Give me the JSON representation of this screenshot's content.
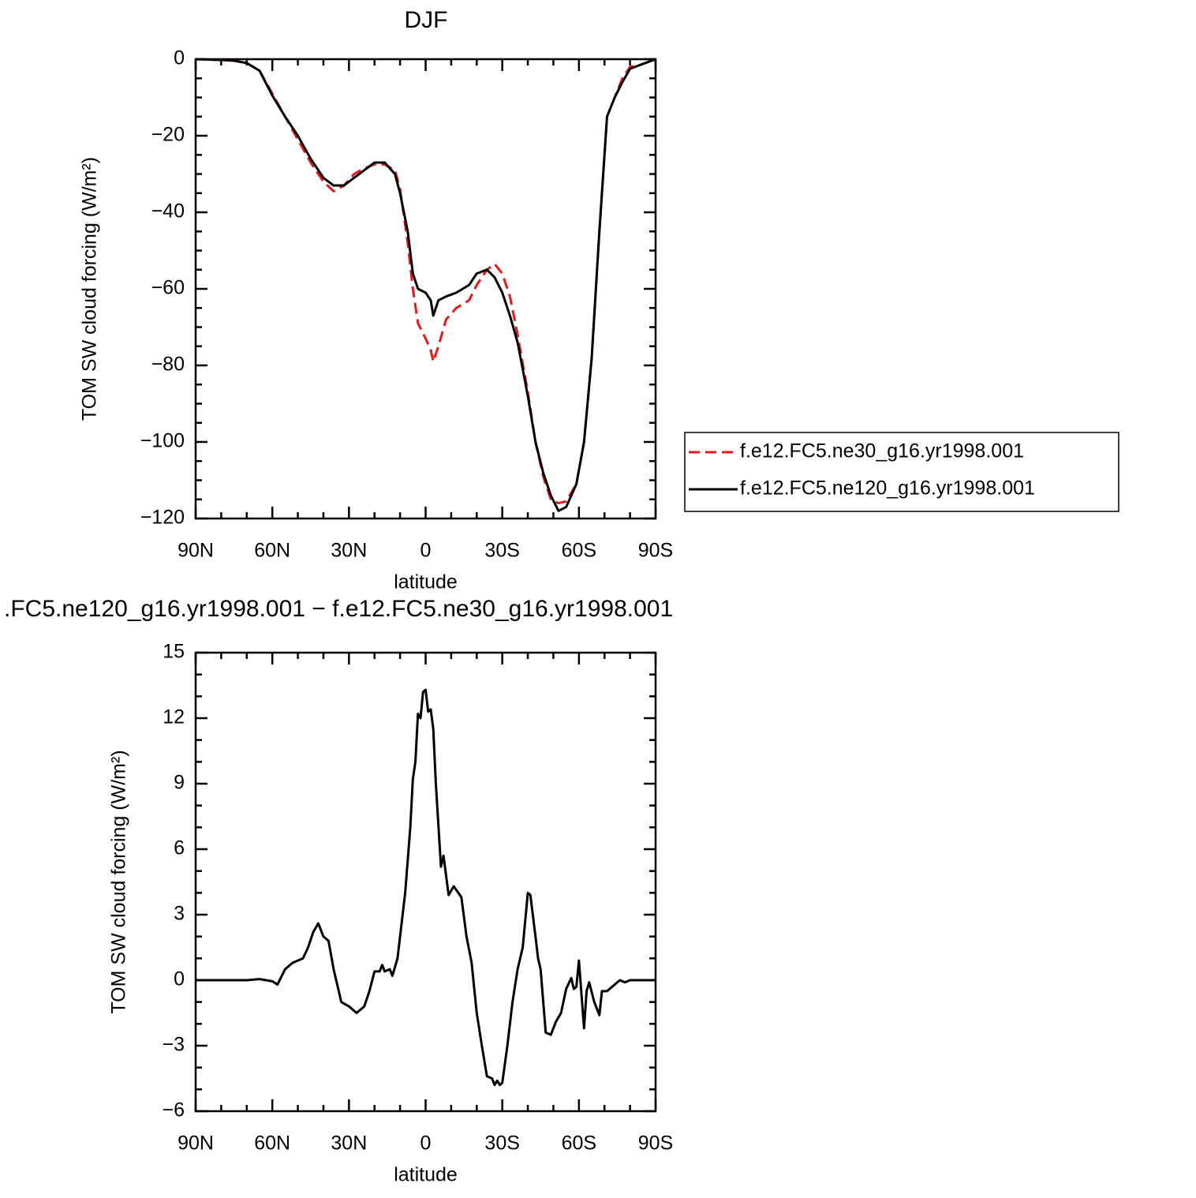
{
  "chart_data": [
    {
      "type": "line",
      "title": "DJF",
      "xlabel": "latitude",
      "ylabel": "TOM SW cloud forcing (W/m²)",
      "x": [
        90,
        85,
        80,
        75,
        70,
        65,
        60,
        55,
        50,
        45,
        40,
        36,
        32,
        28,
        24,
        20,
        16,
        12,
        10,
        7,
        5,
        3,
        0,
        -2,
        -3,
        -5,
        -8,
        -12,
        -17,
        -20,
        -24,
        -27,
        -30,
        -33,
        -36,
        -40,
        -43,
        -46,
        -49,
        -52,
        -55,
        -59,
        -62,
        -65,
        -68,
        -71,
        -74,
        -77,
        -80,
        -84,
        -90
      ],
      "series": [
        {
          "name": "f.e12.FC5.ne30_g16.yr1998.001",
          "color": "#e41a1c",
          "line_style": "dashed",
          "values": [
            0,
            -0.1,
            -0.2,
            -0.4,
            -1,
            -3,
            -9,
            -15,
            -21,
            -27,
            -32,
            -34.5,
            -33,
            -30,
            -28.5,
            -27.5,
            -27.5,
            -29,
            -34,
            -48,
            -60,
            -69,
            -73,
            -76,
            -79,
            -75,
            -68,
            -65,
            -63,
            -59,
            -55,
            -53.5,
            -56,
            -62,
            -72,
            -87,
            -100,
            -109,
            -115,
            -116,
            -115.5,
            -111,
            -100,
            -78,
            -45,
            -15,
            -10,
            -5,
            -2,
            -1.5,
            0
          ]
        },
        {
          "name": "f.e12.FC5.ne120_g16.yr1998.001",
          "color": "#000000",
          "line_style": "solid",
          "values": [
            0,
            -0.1,
            -0.2,
            -0.4,
            -1,
            -3,
            -9.5,
            -15,
            -20,
            -26,
            -31,
            -33,
            -33,
            -31,
            -29,
            -27,
            -27,
            -30,
            -35,
            -45,
            -56,
            -60,
            -61,
            -63,
            -67,
            -63,
            -62,
            -61,
            -59,
            -56,
            -55,
            -57,
            -61,
            -67,
            -74,
            -88,
            -100,
            -108,
            -114,
            -118,
            -117,
            -111,
            -100,
            -78,
            -45,
            -15,
            -10,
            -6,
            -2.5,
            -1.5,
            0
          ]
        }
      ],
      "xlim": [
        90,
        -90
      ],
      "xticks": [
        {
          "value": 90,
          "label": "90N"
        },
        {
          "value": 60,
          "label": "60N"
        },
        {
          "value": 30,
          "label": "30N"
        },
        0,
        {
          "value": -30,
          "label": "30S"
        },
        {
          "value": -60,
          "label": "60S"
        },
        {
          "value": -90,
          "label": "90S"
        }
      ],
      "ylim": [
        -120,
        0
      ],
      "yticks": [
        0,
        {
          "value": -20,
          "label": "−20"
        },
        {
          "value": -40,
          "label": "−40"
        },
        {
          "value": -60,
          "label": "−60"
        },
        {
          "value": -80,
          "label": "−80"
        },
        {
          "value": -100,
          "label": "−100"
        },
        {
          "value": -120,
          "label": "−120"
        }
      ],
      "legend": "right"
    },
    {
      "type": "line",
      "title": ".FC5.ne120_g16.yr1998.001 − f.e12.FC5.ne30_g16.yr1998.001",
      "xlabel": "latitude",
      "ylabel": "TOM SW cloud forcing (W/m²)",
      "x": [
        90,
        70,
        65,
        60,
        58,
        55,
        52,
        48,
        46,
        44,
        42,
        40,
        38,
        36,
        33,
        30,
        27,
        24,
        22,
        20,
        18,
        17,
        16,
        14,
        13,
        11,
        10,
        8,
        6,
        5,
        4,
        3,
        2,
        1,
        0,
        -1,
        -2,
        -3,
        -4,
        -6,
        -7,
        -9,
        -11,
        -14,
        -16,
        -18,
        -20,
        -22,
        -24,
        -26,
        -27,
        -28,
        -29,
        -30,
        -32,
        -34,
        -36,
        -38,
        -40,
        -41,
        -43,
        -44,
        -45,
        -47,
        -49,
        -51,
        -53,
        -55,
        -57,
        -58,
        -59,
        -60,
        -62,
        -63,
        -64,
        -66,
        -68,
        -69,
        -71,
        -73,
        -75,
        -76,
        -78,
        -80,
        -90
      ],
      "color": "#000000",
      "values": [
        0,
        0,
        0.05,
        -0.05,
        -0.2,
        0.5,
        0.8,
        1.0,
        1.5,
        2.2,
        2.6,
        2.0,
        1.8,
        0.5,
        -1.0,
        -1.2,
        -1.5,
        -1.2,
        -0.5,
        0.4,
        0.4,
        0.7,
        0.4,
        0.5,
        0.2,
        1.0,
        2.0,
        4.0,
        7.0,
        9.2,
        10.0,
        12.2,
        12.0,
        13.2,
        13.3,
        12.3,
        12.4,
        11.5,
        9.0,
        5.2,
        5.7,
        3.9,
        4.3,
        3.8,
        2.0,
        0.8,
        -1.5,
        -3.0,
        -4.4,
        -4.5,
        -4.8,
        -4.6,
        -4.8,
        -4.7,
        -3.0,
        -1.0,
        0.5,
        1.5,
        4.0,
        3.9,
        2.0,
        1.0,
        0.5,
        -2.4,
        -2.5,
        -1.9,
        -1.5,
        -0.4,
        0.1,
        -0.4,
        -0.3,
        0.9,
        -2.2,
        -0.5,
        -0.1,
        -1.0,
        -1.6,
        -0.5,
        -0.5,
        -0.3,
        -0.1,
        0.0,
        -0.1,
        0,
        0
      ],
      "xlim": [
        90,
        -90
      ],
      "xticks": [
        {
          "value": 90,
          "label": "90N"
        },
        {
          "value": 60,
          "label": "60N"
        },
        {
          "value": 30,
          "label": "30N"
        },
        0,
        {
          "value": -30,
          "label": "30S"
        },
        {
          "value": -60,
          "label": "60S"
        },
        {
          "value": -90,
          "label": "90S"
        }
      ],
      "ylim": [
        -6,
        15
      ],
      "yticks": [
        15,
        12,
        9,
        6,
        3,
        0,
        {
          "value": -3,
          "label": "−3"
        },
        {
          "value": -6,
          "label": "−6"
        }
      ]
    }
  ]
}
